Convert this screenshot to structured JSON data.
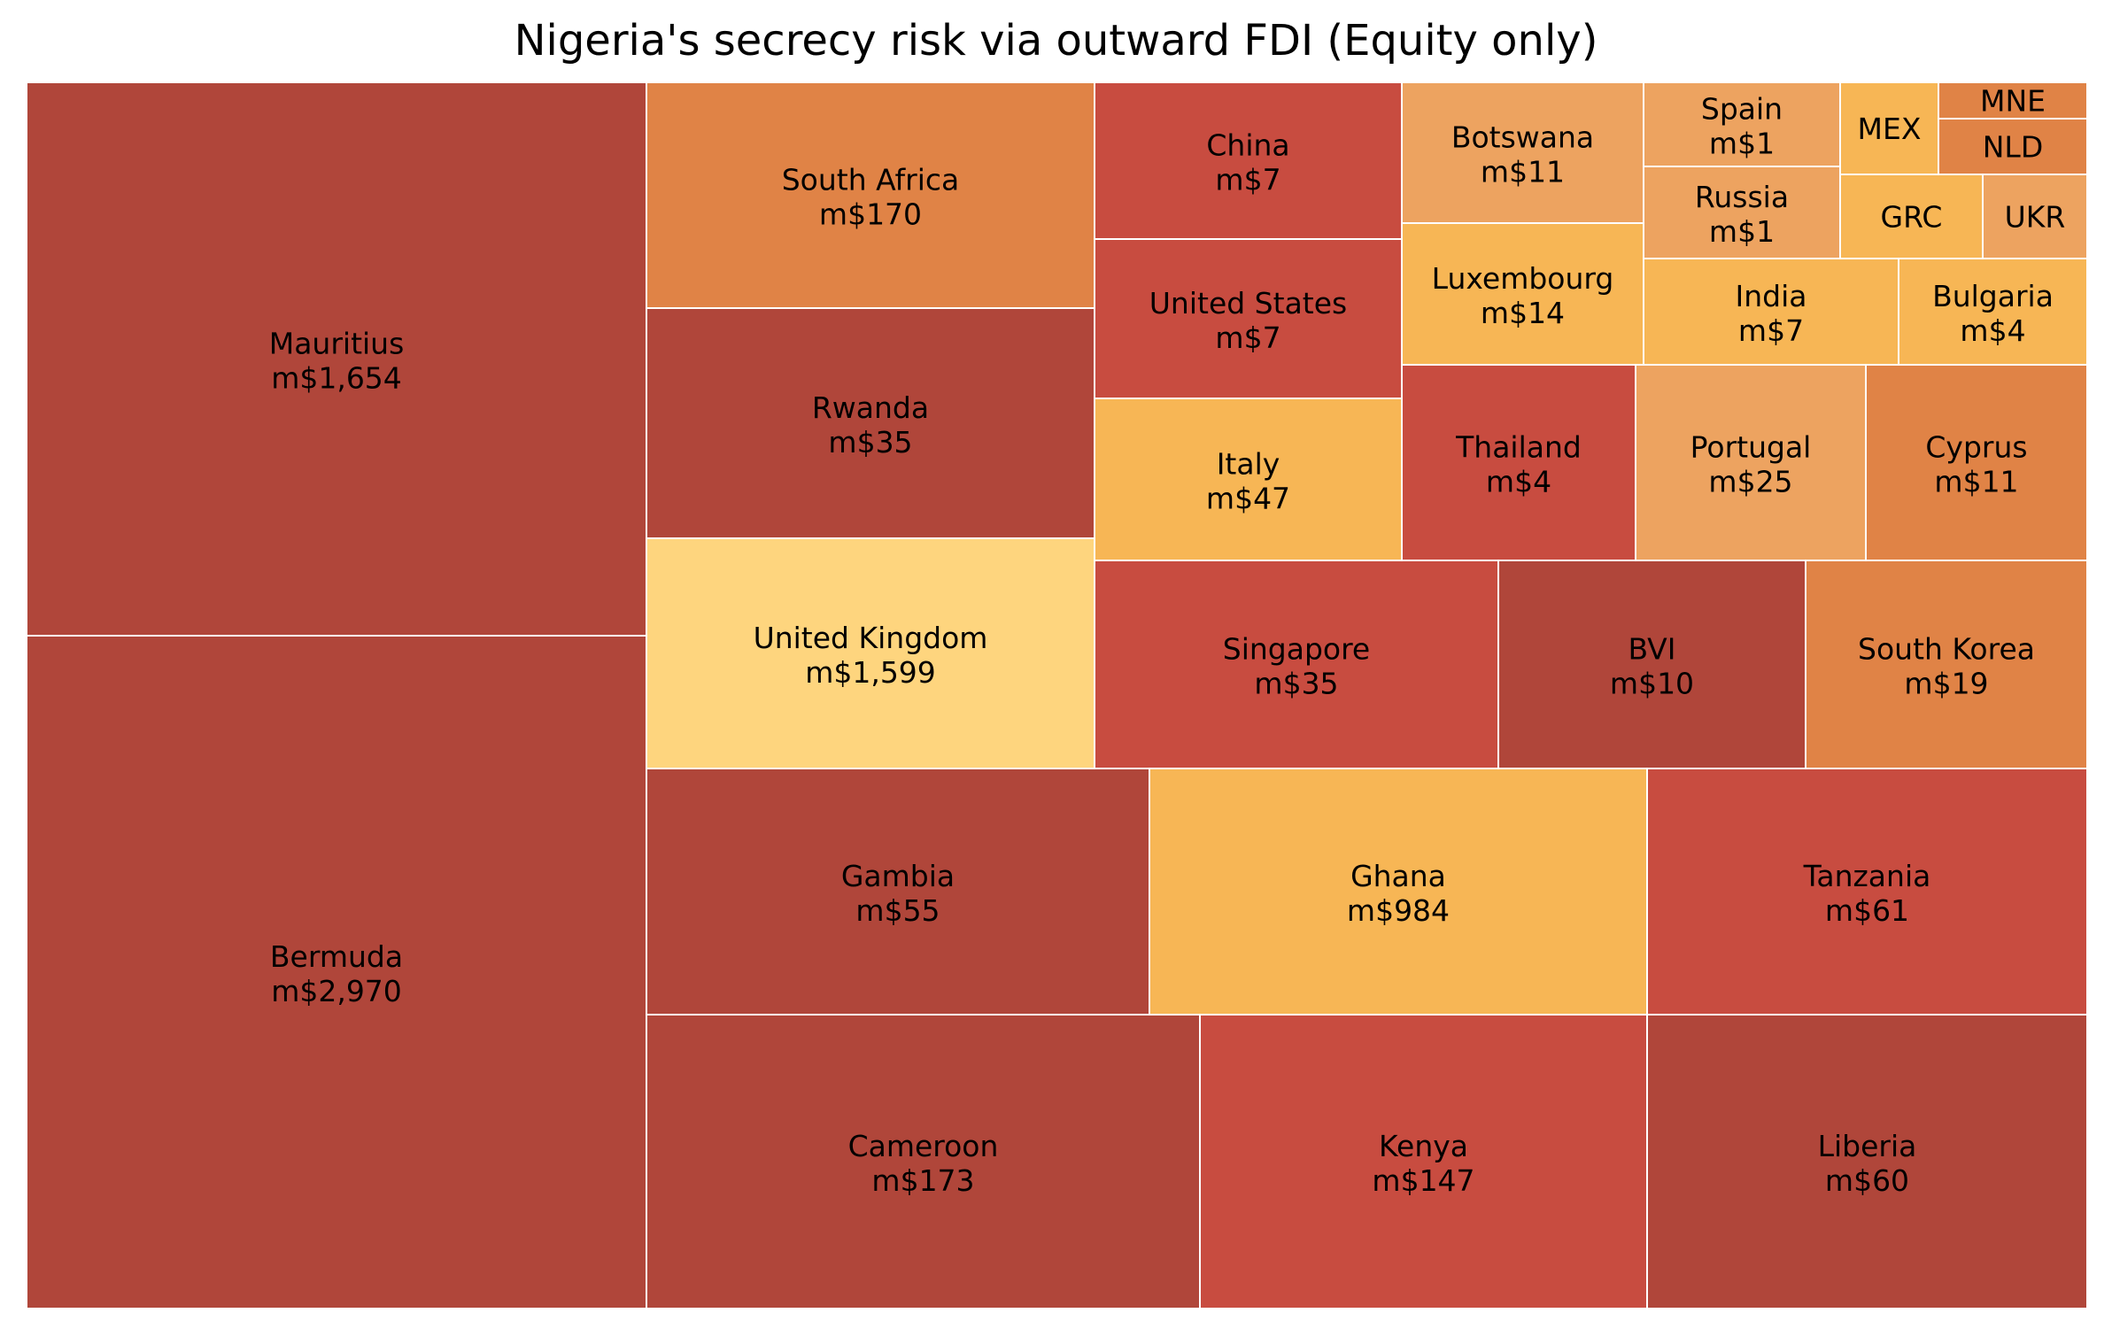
{
  "chart_data": {
    "type": "treemap",
    "title": "Nigeria's secrecy risk via outward FDI (Equity only)",
    "colors": {
      "darkred": "#b0463a",
      "red": "#c84c40",
      "orange": "#e08346",
      "lightorange": "#eda360",
      "amber": "#f7b655",
      "yellow": "#fed57e",
      "border": "#ffffff"
    },
    "items": [
      {
        "name": "Mauritius",
        "value_label": "m$1,654",
        "color": "#b0463a"
      },
      {
        "name": "Bermuda",
        "value_label": "m$2,970",
        "color": "#b0463a"
      },
      {
        "name": "South Africa",
        "value_label": "m$170",
        "color": "#e08346"
      },
      {
        "name": "Rwanda",
        "value_label": "m$35",
        "color": "#b0463a"
      },
      {
        "name": "United Kingdom",
        "value_label": "m$1,599",
        "color": "#fed57e"
      },
      {
        "name": "China",
        "value_label": "m$7",
        "color": "#c84c40"
      },
      {
        "name": "United States",
        "value_label": "m$7",
        "color": "#c84c40"
      },
      {
        "name": "Italy",
        "value_label": "m$47",
        "color": "#f7b655"
      },
      {
        "name": "Botswana",
        "value_label": "m$11",
        "color": "#eda360"
      },
      {
        "name": "Luxembourg",
        "value_label": "m$14",
        "color": "#f7b655"
      },
      {
        "name": "Spain",
        "value_label": "m$1",
        "color": "#eda360"
      },
      {
        "name": "Russia",
        "value_label": "m$1",
        "color": "#eda360"
      },
      {
        "name": "MEX",
        "value_label": "",
        "color": "#f7b655"
      },
      {
        "name": "MNE",
        "value_label": "",
        "color": "#e08346"
      },
      {
        "name": "NLD",
        "value_label": "",
        "color": "#e08346"
      },
      {
        "name": "GRC",
        "value_label": "",
        "color": "#f7b655"
      },
      {
        "name": "UKR",
        "value_label": "",
        "color": "#eda360"
      },
      {
        "name": "India",
        "value_label": "m$7",
        "color": "#f7b655"
      },
      {
        "name": "Bulgaria",
        "value_label": "m$4",
        "color": "#f7b655"
      },
      {
        "name": "Thailand",
        "value_label": "m$4",
        "color": "#c84c40"
      },
      {
        "name": "Portugal",
        "value_label": "m$25",
        "color": "#eda360"
      },
      {
        "name": "Cyprus",
        "value_label": "m$11",
        "color": "#e08346"
      },
      {
        "name": "Singapore",
        "value_label": "m$35",
        "color": "#c84c40"
      },
      {
        "name": "BVI",
        "value_label": "m$10",
        "color": "#b0463a"
      },
      {
        "name": "South Korea",
        "value_label": "m$19",
        "color": "#e08346"
      },
      {
        "name": "Gambia",
        "value_label": "m$55",
        "color": "#b0463a"
      },
      {
        "name": "Ghana",
        "value_label": "m$984",
        "color": "#f7b655"
      },
      {
        "name": "Tanzania",
        "value_label": "m$61",
        "color": "#c84c40"
      },
      {
        "name": "Cameroon",
        "value_label": "m$173",
        "color": "#b0463a"
      },
      {
        "name": "Kenya",
        "value_label": "m$147",
        "color": "#c84c40"
      },
      {
        "name": "Liberia",
        "value_label": "m$60",
        "color": "#b0463a"
      }
    ]
  }
}
